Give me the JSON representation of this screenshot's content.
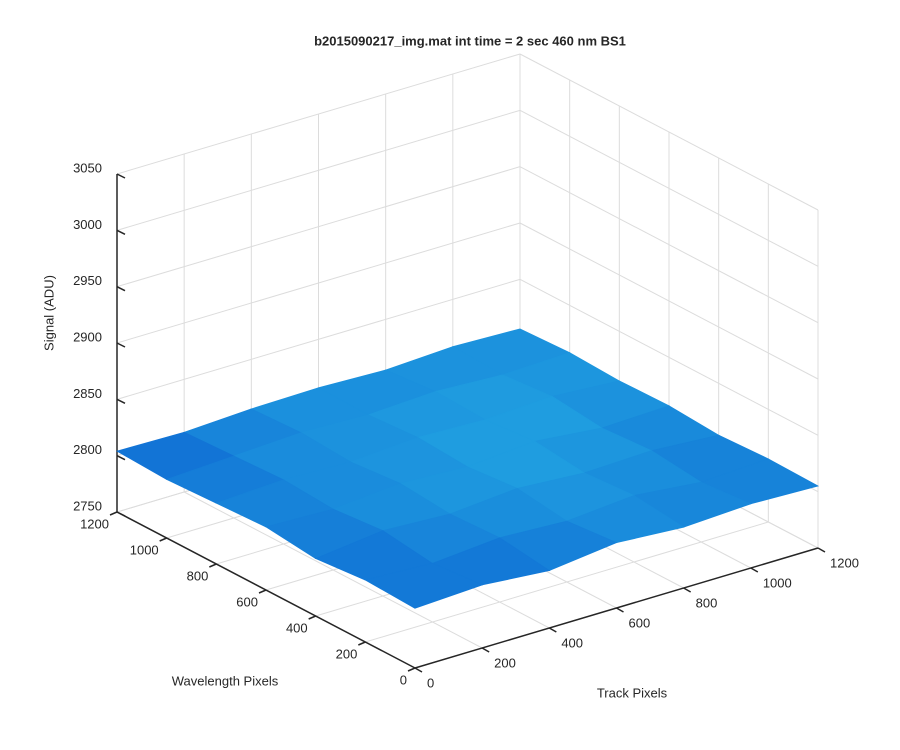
{
  "chart_data": {
    "type": "surface",
    "title": "b2015090217_img.mat int time = 2 sec  460 nm BS1",
    "xlabel": "Track Pixels",
    "ylabel": "Wavelength Pixels",
    "zlabel": "Signal (ADU)",
    "x": [
      0,
      200,
      400,
      600,
      800,
      1000,
      1200
    ],
    "y": [
      0,
      200,
      400,
      600,
      800,
      1000,
      1200
    ],
    "z": [
      [
        2803,
        2806,
        2801,
        2808,
        2804,
        2807,
        2805
      ],
      [
        2805,
        2802,
        2807,
        2804,
        2809,
        2803,
        2806
      ],
      [
        2801,
        2808,
        2805,
        2810,
        2806,
        2808,
        2804
      ],
      [
        2806,
        2804,
        2809,
        2806,
        2811,
        2805,
        2807
      ],
      [
        2804,
        2807,
        2805,
        2809,
        2807,
        2810,
        2806
      ],
      [
        2802,
        2805,
        2808,
        2806,
        2809,
        2806,
        2808
      ],
      [
        2804,
        2803,
        2806,
        2807,
        2805,
        2808,
        2806
      ]
    ],
    "xlim": [
      0,
      1200
    ],
    "ylim": [
      0,
      1200
    ],
    "zlim": [
      2750,
      3050
    ],
    "xticks": [
      0,
      200,
      400,
      600,
      800,
      1000,
      1200
    ],
    "yticks": [
      0,
      200,
      400,
      600,
      800,
      1000,
      1200
    ],
    "zticks": [
      2750,
      2800,
      2850,
      2900,
      2950,
      3000,
      3050
    ],
    "grid": true,
    "colormap": [
      "#0b5fd0",
      "#27b4e6"
    ]
  }
}
